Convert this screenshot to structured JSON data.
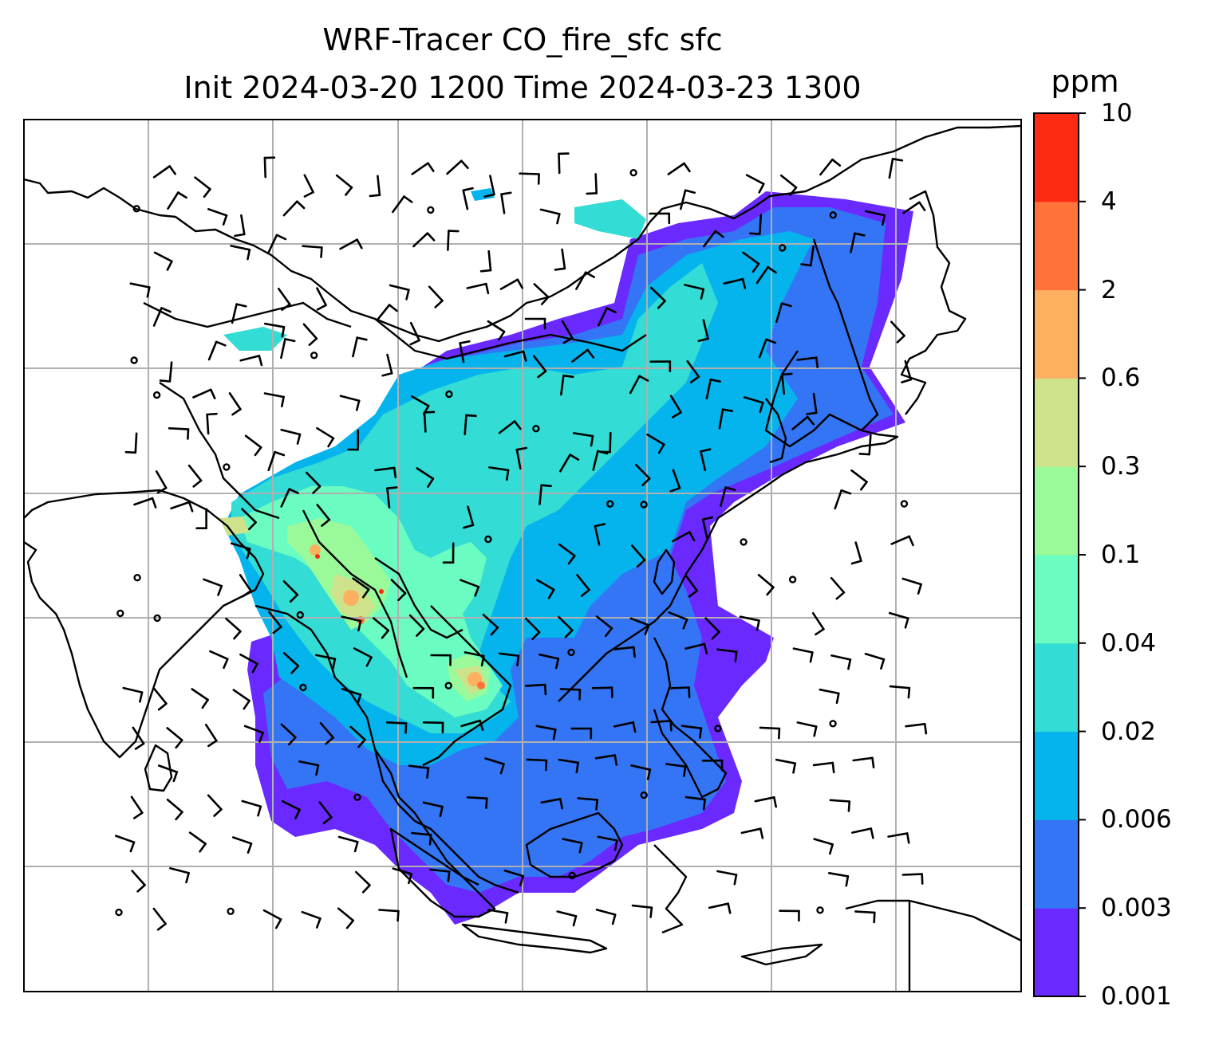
{
  "title": {
    "line1": "WRF-Tracer CO_fire_sfc sfc",
    "line2": "Init 2024-03-20 1200 Time 2024-03-23 1300"
  },
  "colorbar": {
    "unit": "ppm",
    "levels": [
      "0.001",
      "0.003",
      "0.006",
      "0.02",
      "0.04",
      "0.1",
      "0.3",
      "0.6",
      "2",
      "4",
      "10"
    ],
    "colors": [
      "#6a2aff",
      "#3375f4",
      "#05b4ec",
      "#33dcd4",
      "#6afcc0",
      "#9afa9a",
      "#cde28a",
      "#fdb05f",
      "#ff7239",
      "#ff2a12"
    ]
  },
  "colors": {
    "coastline": "#000000",
    "gridline": "#b0b0b0",
    "barb": "#000000"
  }
}
